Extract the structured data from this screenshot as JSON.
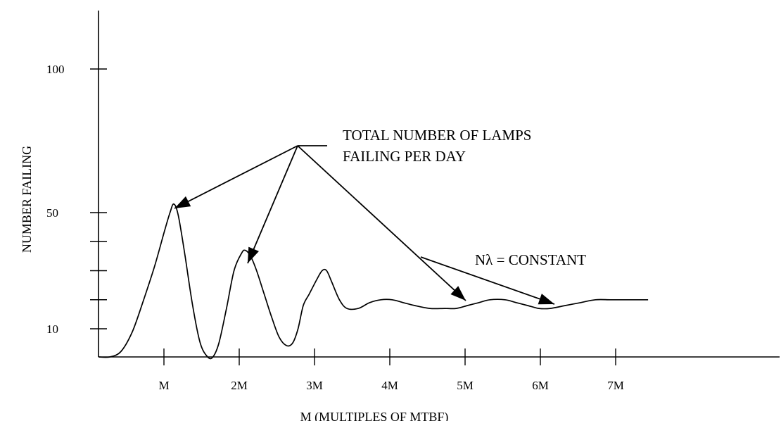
{
  "chart_data": {
    "type": "line",
    "title": "",
    "xlabel": "M (MULTIPLES OF MTBF)",
    "ylabel": "NUMBER FAILING",
    "x_ticks": [
      {
        "value": 1,
        "label": "M"
      },
      {
        "value": 2,
        "label": "2M"
      },
      {
        "value": 3,
        "label": "3M"
      },
      {
        "value": 4,
        "label": "4M"
      },
      {
        "value": 5,
        "label": "5M"
      },
      {
        "value": 6,
        "label": "6M"
      },
      {
        "value": 7,
        "label": "7M"
      }
    ],
    "y_ticks": [
      {
        "value": 10,
        "label": "10"
      },
      {
        "value": 20,
        "label": ""
      },
      {
        "value": 30,
        "label": ""
      },
      {
        "value": 40,
        "label": ""
      },
      {
        "value": 50,
        "label": "50"
      },
      {
        "value": 100,
        "label": "100"
      }
    ],
    "xlim": [
      0,
      10
    ],
    "grid": false,
    "series": [
      {
        "x": [
          0,
          0.15,
          0.3,
          0.45,
          0.6,
          0.75,
          0.88,
          0.95,
          1.0,
          1.06,
          1.15,
          1.25,
          1.35,
          1.45,
          1.52,
          1.6,
          1.7,
          1.8,
          1.9,
          1.95,
          2.02,
          2.1,
          2.2,
          2.3,
          2.4,
          2.5,
          2.58,
          2.65,
          2.72,
          2.8,
          2.9,
          2.97,
          3.03,
          3.1,
          3.2,
          3.3,
          3.45,
          3.6,
          3.75,
          3.9,
          4.05,
          4.2,
          4.4,
          4.6,
          4.75,
          4.9,
          5.05,
          5.2,
          5.4,
          5.55,
          5.7,
          5.85,
          6.0,
          6.2,
          6.4,
          6.6,
          6.8,
          7.0,
          7.15,
          7.3
        ],
        "y": [
          0,
          0,
          2,
          9,
          20,
          32,
          44,
          50,
          53,
          49,
          35,
          18,
          5,
          0,
          0,
          5,
          17,
          30,
          36,
          37,
          35,
          30,
          22,
          14,
          7,
          4,
          5,
          10,
          18,
          22,
          27,
          30,
          30,
          26,
          20,
          17,
          17,
          19,
          20,
          20,
          19,
          18,
          17,
          17,
          17,
          18,
          19,
          20,
          20,
          19,
          18,
          17,
          17,
          18,
          19,
          20,
          20,
          20,
          20,
          20
        ]
      }
    ],
    "annotations": [
      {
        "text": [
          "TOTAL NUMBER OF LAMPS",
          "FAILING PER DAY"
        ],
        "points_to": [
          [
            1.0,
            53
          ],
          [
            2.0,
            37
          ],
          [
            5.1,
            19
          ]
        ]
      },
      {
        "text": [
          "Nλ  =  CONSTANT"
        ],
        "points_to": [
          [
            6.3,
            18
          ]
        ]
      }
    ]
  }
}
